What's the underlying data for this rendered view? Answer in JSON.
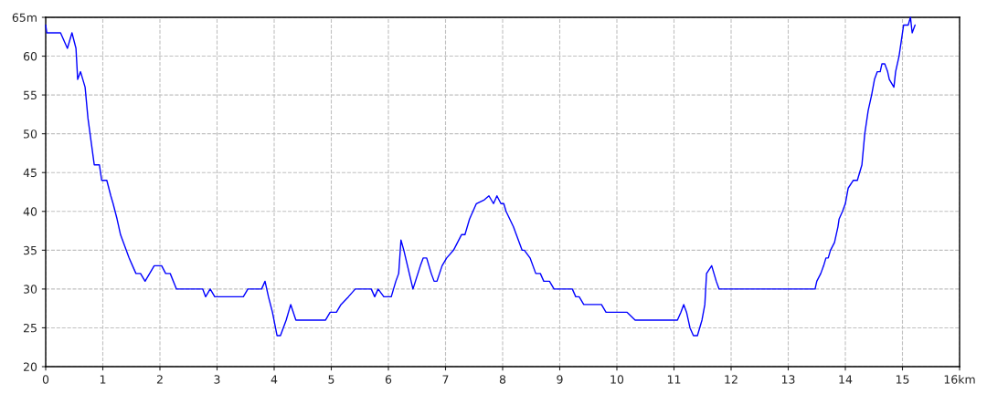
{
  "chart_data": {
    "type": "line",
    "x": [
      0,
      0.02,
      0.26,
      0.38,
      0.46,
      0.53,
      0.56,
      0.61,
      0.69,
      0.74,
      0.85,
      0.94,
      0.98,
      1.07,
      1.14,
      1.18,
      1.25,
      1.31,
      1.41,
      1.46,
      1.52,
      1.58,
      1.66,
      1.74,
      1.82,
      1.9,
      2.03,
      2.1,
      2.18,
      2.29,
      2.75,
      2.8,
      2.88,
      2.96,
      3.46,
      3.54,
      3.78,
      3.84,
      3.9,
      3.97,
      4.05,
      4.11,
      4.21,
      4.29,
      4.38,
      4.9,
      4.98,
      5.09,
      5.17,
      5.3,
      5.42,
      5.7,
      5.76,
      5.82,
      5.92,
      6.05,
      6.13,
      6.18,
      6.22,
      6.27,
      6.43,
      6.56,
      6.61,
      6.67,
      6.75,
      6.8,
      6.85,
      6.94,
      7.02,
      7.14,
      7.28,
      7.34,
      7.42,
      7.54,
      7.68,
      7.76,
      7.84,
      7.9,
      7.97,
      8.02,
      8.06,
      8.19,
      8.29,
      8.34,
      8.38,
      8.48,
      8.58,
      8.66,
      8.72,
      8.82,
      8.9,
      9.22,
      9.28,
      9.34,
      9.42,
      9.73,
      9.81,
      10.18,
      10.32,
      11.06,
      11.12,
      11.17,
      11.22,
      11.28,
      11.34,
      11.41,
      11.49,
      11.54,
      11.57,
      11.66,
      11.74,
      11.79,
      13.47,
      13.5,
      13.57,
      13.62,
      13.66,
      13.7,
      13.74,
      13.81,
      13.87,
      13.89,
      13.95,
      14.0,
      14.05,
      14.14,
      14.21,
      14.29,
      14.34,
      14.4,
      14.46,
      14.51,
      14.56,
      14.61,
      14.64,
      14.69,
      14.74,
      14.77,
      14.85,
      14.88,
      14.94,
      14.98,
      15.02,
      15.1,
      15.14,
      15.17,
      15.22
    ],
    "series": [
      {
        "color": "#0000ff",
        "values": [
          64,
          63,
          63,
          61,
          63,
          61,
          57,
          58,
          56,
          52,
          46,
          46,
          44,
          44,
          42,
          41,
          39,
          37,
          35,
          34,
          33,
          32,
          32,
          31,
          32,
          33,
          33,
          32,
          32,
          30,
          30,
          29,
          30,
          29,
          29,
          30,
          30,
          31,
          29,
          27,
          24,
          24,
          26,
          28,
          26,
          26,
          27,
          27,
          28,
          29,
          30,
          30,
          29,
          30,
          29,
          29,
          31,
          32,
          36.3,
          35,
          30,
          33,
          34,
          34,
          32,
          31,
          31,
          33,
          34,
          35,
          37,
          37,
          39,
          41,
          41.5,
          42,
          41,
          42,
          41,
          41,
          40,
          38,
          36,
          35,
          35,
          34,
          32,
          32,
          31,
          31,
          30,
          30,
          29,
          29,
          28,
          28,
          27,
          27,
          26,
          26,
          27,
          28,
          27,
          25,
          24,
          24,
          26,
          28,
          32,
          33,
          31,
          30,
          30,
          31,
          32,
          33,
          34,
          34,
          35,
          36,
          38,
          39,
          40,
          41,
          43,
          44,
          44,
          46,
          50,
          53,
          55,
          57,
          58,
          58,
          59,
          59,
          58,
          57,
          56,
          58,
          60,
          62,
          64,
          64,
          65,
          63,
          64
        ]
      }
    ],
    "xlim": [
      0,
      16
    ],
    "xticks": [
      0,
      1,
      2,
      3,
      4,
      5,
      6,
      7,
      8,
      9,
      10,
      11,
      12,
      13,
      14,
      15,
      {
        "value": 16,
        "label": "16km"
      }
    ],
    "ylim": [
      20,
      65
    ],
    "yticks": [
      20,
      25,
      30,
      35,
      40,
      45,
      50,
      55,
      60,
      {
        "value": 65,
        "label": "65m"
      }
    ],
    "grid": true,
    "line_style": "solid",
    "marker": "none"
  }
}
